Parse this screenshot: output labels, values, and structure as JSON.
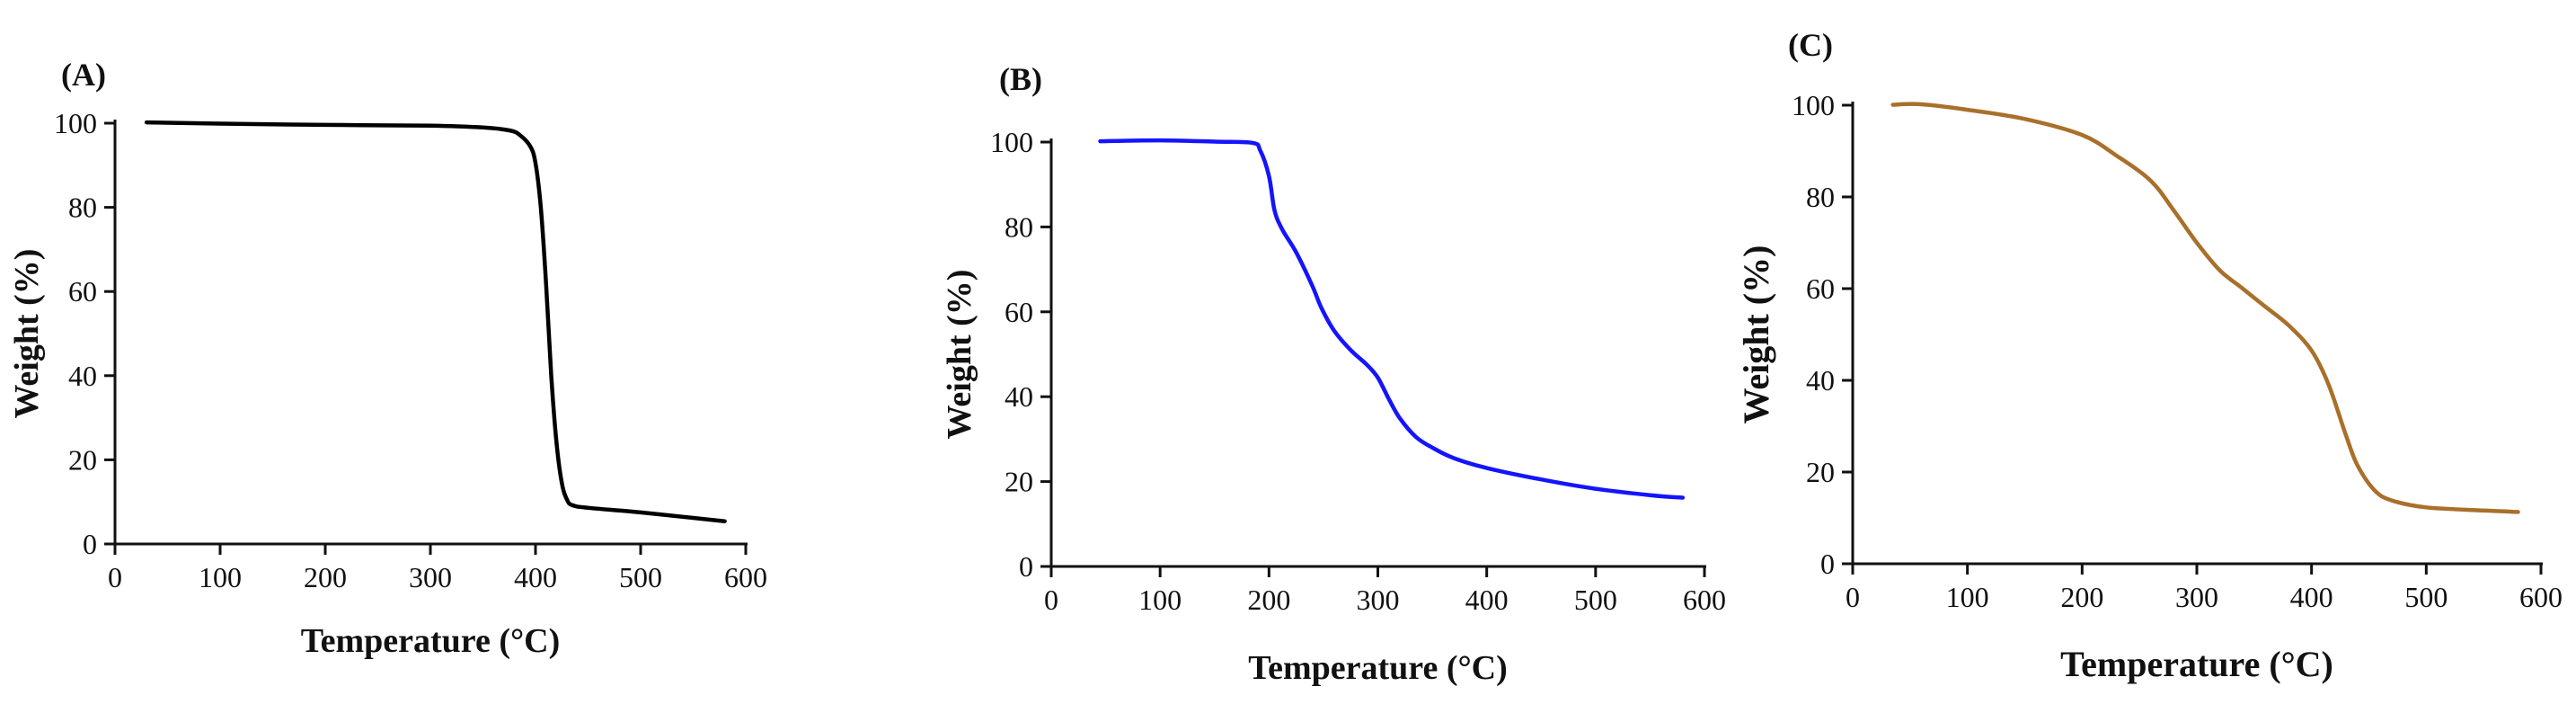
{
  "chart_data": [
    {
      "type": "line",
      "panel_label": "(A)",
      "title": "",
      "xlabel": "Temperature (°C)",
      "ylabel": "Weight (%)",
      "xlim": [
        0,
        600
      ],
      "ylim": [
        0,
        100
      ],
      "x_ticks": [
        "0",
        "100",
        "200",
        "300",
        "400",
        "500",
        "600"
      ],
      "y_ticks": [
        "0",
        "20",
        "40",
        "60",
        "80",
        "100"
      ],
      "grid": false,
      "series": [
        {
          "color": "#000000",
          "points": [
            [
              30,
              100.2
            ],
            [
              100,
              99.9
            ],
            [
              200,
              99.6
            ],
            [
              300,
              99.4
            ],
            [
              350,
              99.0
            ],
            [
              375,
              98.3
            ],
            [
              385,
              97.2
            ],
            [
              395,
              94.5
            ],
            [
              400,
              90.5
            ],
            [
              405,
              80
            ],
            [
              410,
              62
            ],
            [
              415,
              40
            ],
            [
              420,
              24
            ],
            [
              425,
              14.5
            ],
            [
              430,
              10.5
            ],
            [
              435,
              9.2
            ],
            [
              450,
              8.6
            ],
            [
              500,
              7.5
            ],
            [
              550,
              6.2
            ],
            [
              580,
              5.4
            ]
          ]
        }
      ]
    },
    {
      "type": "line",
      "panel_label": "(B)",
      "title": "",
      "xlabel": "Temperature (°C)",
      "ylabel": "Weight (%)",
      "xlim": [
        0,
        600
      ],
      "ylim": [
        0,
        100
      ],
      "x_ticks": [
        "0",
        "100",
        "200",
        "300",
        "400",
        "500",
        "600"
      ],
      "y_ticks": [
        "0",
        "20",
        "40",
        "60",
        "80",
        "100"
      ],
      "grid": false,
      "series": [
        {
          "color": "#1414ff",
          "points": [
            [
              45,
              100.2
            ],
            [
              100,
              100.4
            ],
            [
              150,
              100.1
            ],
            [
              185,
              99.8
            ],
            [
              192,
              98
            ],
            [
              200,
              92
            ],
            [
              205,
              84
            ],
            [
              212,
              79.5
            ],
            [
              225,
              74
            ],
            [
              240,
              66
            ],
            [
              248,
              61
            ],
            [
              260,
              55.5
            ],
            [
              275,
              51
            ],
            [
              290,
              47.5
            ],
            [
              300,
              44.5
            ],
            [
              310,
              39.5
            ],
            [
              320,
              35
            ],
            [
              335,
              30.5
            ],
            [
              350,
              28
            ],
            [
              370,
              25.5
            ],
            [
              400,
              23.2
            ],
            [
              450,
              20.5
            ],
            [
              500,
              18.3
            ],
            [
              550,
              16.8
            ],
            [
              580,
              16.2
            ]
          ]
        }
      ]
    },
    {
      "type": "line",
      "panel_label": "(C)",
      "title": "",
      "xlabel": "Temperature (°C)",
      "ylabel": "Weight (%)",
      "xlim": [
        0,
        600
      ],
      "ylim": [
        0,
        100
      ],
      "x_ticks": [
        "0",
        "100",
        "200",
        "300",
        "400",
        "500",
        "600"
      ],
      "y_ticks": [
        "0",
        "20",
        "40",
        "60",
        "80",
        "100"
      ],
      "grid": false,
      "series": [
        {
          "color": "#a8702a",
          "points": [
            [
              35,
              100.1
            ],
            [
              60,
              100.2
            ],
            [
              100,
              99
            ],
            [
              150,
              97
            ],
            [
              200,
              93.5
            ],
            [
              230,
              89
            ],
            [
              260,
              83.5
            ],
            [
              280,
              77
            ],
            [
              300,
              70
            ],
            [
              320,
              64
            ],
            [
              340,
              60
            ],
            [
              360,
              56
            ],
            [
              380,
              52
            ],
            [
              400,
              46.5
            ],
            [
              415,
              39
            ],
            [
              430,
              28
            ],
            [
              440,
              21.5
            ],
            [
              455,
              16
            ],
            [
              470,
              13.8
            ],
            [
              500,
              12.3
            ],
            [
              550,
              11.6
            ],
            [
              580,
              11.3
            ]
          ]
        }
      ]
    }
  ]
}
